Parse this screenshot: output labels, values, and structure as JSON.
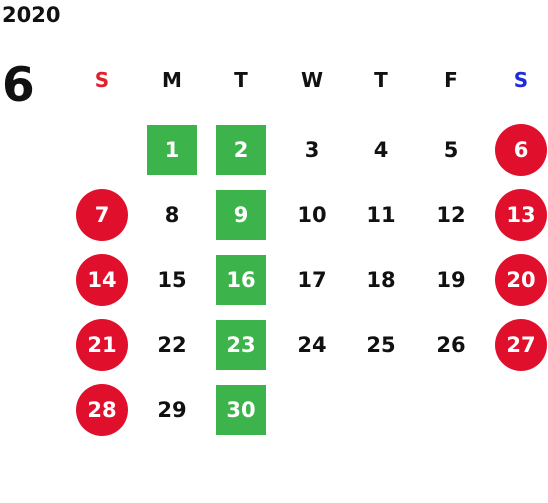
{
  "calendar": {
    "year": "2020",
    "month": "6",
    "weekdays": [
      {
        "label": "S",
        "color": "#e0202a"
      },
      {
        "label": "M",
        "color": "#111111"
      },
      {
        "label": "T",
        "color": "#111111"
      },
      {
        "label": "W",
        "color": "#111111"
      },
      {
        "label": "T",
        "color": "#111111"
      },
      {
        "label": "F",
        "color": "#111111"
      },
      {
        "label": "S",
        "color": "#1f2ad8"
      }
    ],
    "weeks": [
      [
        null,
        {
          "day": "1",
          "style": "square"
        },
        {
          "day": "2",
          "style": "square"
        },
        {
          "day": "3",
          "style": "plain"
        },
        {
          "day": "4",
          "style": "plain"
        },
        {
          "day": "5",
          "style": "plain"
        },
        {
          "day": "6",
          "style": "circle"
        }
      ],
      [
        {
          "day": "7",
          "style": "circle"
        },
        {
          "day": "8",
          "style": "plain"
        },
        {
          "day": "9",
          "style": "square"
        },
        {
          "day": "10",
          "style": "plain"
        },
        {
          "day": "11",
          "style": "plain"
        },
        {
          "day": "12",
          "style": "plain"
        },
        {
          "day": "13",
          "style": "circle"
        }
      ],
      [
        {
          "day": "14",
          "style": "circle"
        },
        {
          "day": "15",
          "style": "plain"
        },
        {
          "day": "16",
          "style": "square"
        },
        {
          "day": "17",
          "style": "plain"
        },
        {
          "day": "18",
          "style": "plain"
        },
        {
          "day": "19",
          "style": "plain"
        },
        {
          "day": "20",
          "style": "circle"
        }
      ],
      [
        {
          "day": "21",
          "style": "circle"
        },
        {
          "day": "22",
          "style": "plain"
        },
        {
          "day": "23",
          "style": "square"
        },
        {
          "day": "24",
          "style": "plain"
        },
        {
          "day": "25",
          "style": "plain"
        },
        {
          "day": "26",
          "style": "plain"
        },
        {
          "day": "27",
          "style": "circle"
        }
      ],
      [
        {
          "day": "28",
          "style": "circle"
        },
        {
          "day": "29",
          "style": "plain"
        },
        {
          "day": "30",
          "style": "square"
        },
        null,
        null,
        null,
        null
      ]
    ],
    "colors": {
      "holiday_circle": "#e0102c",
      "highlight_square": "#3cb44b"
    }
  }
}
